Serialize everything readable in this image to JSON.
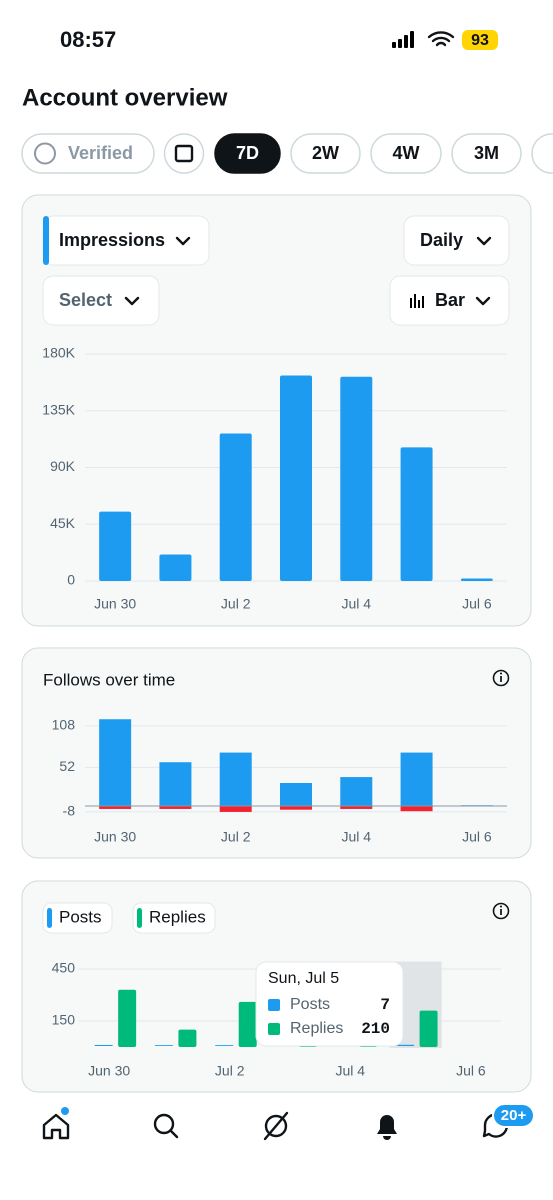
{
  "status_bar": {
    "time": "08:57",
    "battery": "93"
  },
  "header": {
    "title": "Account overview"
  },
  "filters": {
    "verified": "Verified",
    "ranges": [
      "7D",
      "2W",
      "4W",
      "3M"
    ],
    "selected_index": 0
  },
  "impressions_card": {
    "metric": "Impressions",
    "interval": "Daily",
    "compare": "Select",
    "chart_style": "Bar"
  },
  "chart_data": [
    {
      "type": "bar",
      "categories": [
        "Jun 30",
        null,
        "Jul 2",
        null,
        "Jul 4",
        null,
        "Jul 6"
      ],
      "values": [
        55000,
        21000,
        117000,
        163000,
        162000,
        106000,
        2000
      ],
      "color": "#1d9bf0",
      "ylim": [
        0,
        180000
      ],
      "yticks": [
        0,
        {
          "value": 45000,
          "label": "45K"
        },
        {
          "value": 90000,
          "label": "90K"
        },
        {
          "value": 135000,
          "label": "135K"
        },
        {
          "value": 180000,
          "label": "180K"
        }
      ],
      "grid": true
    },
    {
      "type": "stacked_bar",
      "title": "Follows over time",
      "categories": [
        "Jun 30",
        null,
        "Jul 2",
        null,
        "Jul 4",
        null,
        "Jul 6"
      ],
      "series": [
        {
          "color": "#1d9bf0",
          "values": [
            117,
            59,
            72,
            31,
            39,
            72,
            1
          ]
        },
        {
          "color": "#f4212e",
          "values": [
            -4,
            -4,
            -8,
            -5,
            -4,
            -7,
            0
          ]
        }
      ],
      "ylim": [
        -10,
        120
      ],
      "yticks": [
        108,
        52,
        -8
      ],
      "grid": true
    },
    {
      "type": "grouped_bar",
      "categories": [
        "Jun 30",
        null,
        "Jul 2",
        null,
        "Jul 4",
        null,
        "Jul 6"
      ],
      "series": [
        {
          "name": "Posts",
          "color": "#1d9bf0",
          "values": [
            6,
            5,
            5,
            5,
            5,
            7,
            0
          ]
        },
        {
          "name": "Replies",
          "color": "#00ba7c",
          "values": [
            330,
            100,
            260,
            30,
            30,
            210,
            0
          ]
        }
      ],
      "ylim": [
        0,
        470
      ],
      "yticks": [
        150,
        450
      ],
      "grid": true,
      "tooltip": {
        "title": "Sun, Jul 5",
        "index": 5
      }
    }
  ],
  "nav": {
    "badge": "20+"
  }
}
